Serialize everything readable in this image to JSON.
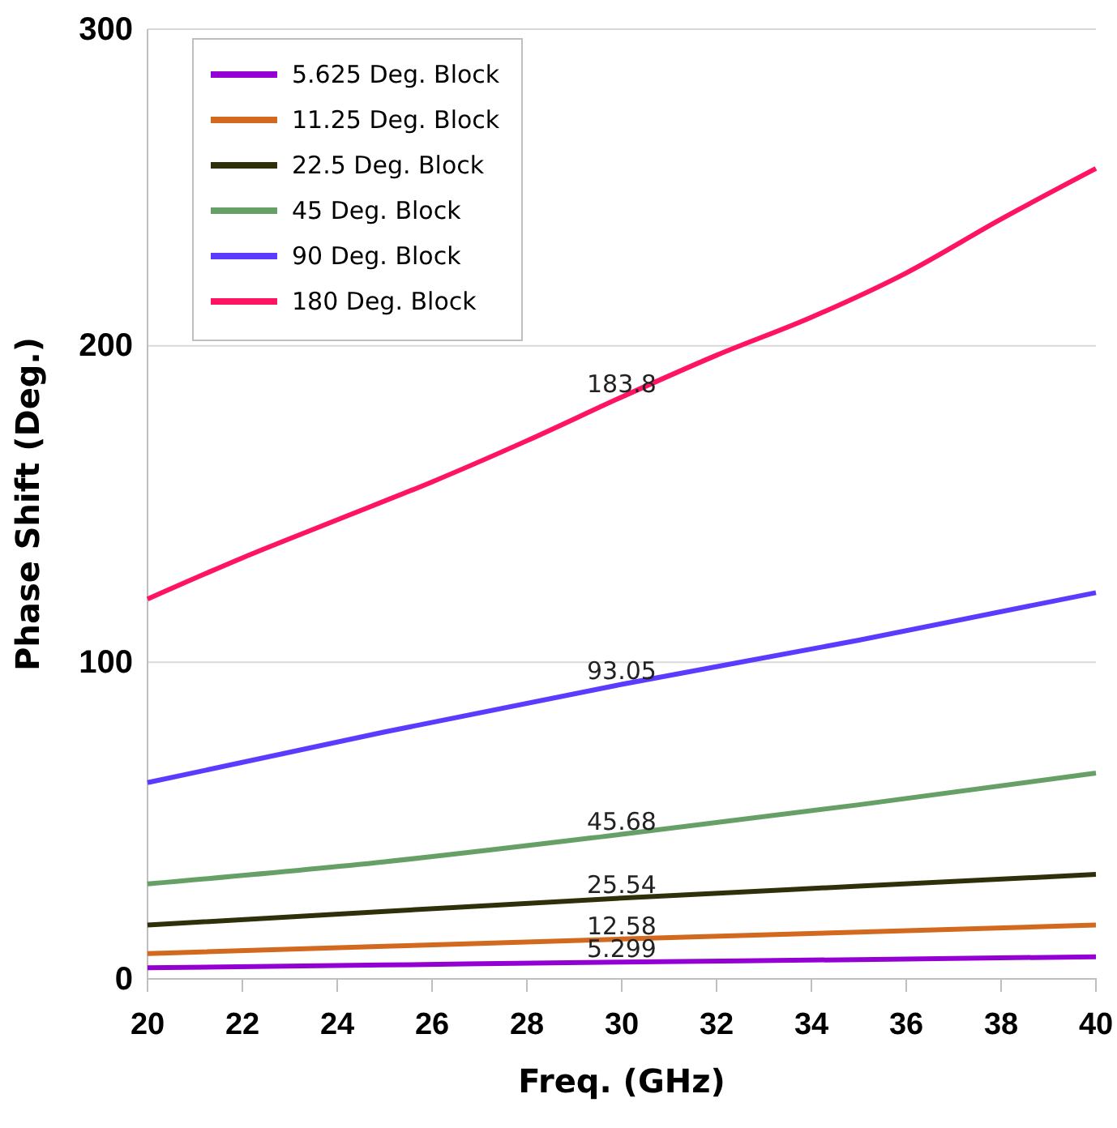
{
  "chart_data": {
    "type": "line",
    "xlabel": "Freq. (GHz)",
    "ylabel": "Phase Shift (Deg.)",
    "xlim": [
      20,
      40
    ],
    "xticks": [
      20,
      22,
      24,
      26,
      28,
      30,
      32,
      34,
      36,
      38,
      40
    ],
    "ylim": [
      0,
      300
    ],
    "yticks": [
      0,
      100,
      200,
      300
    ],
    "grid": "y",
    "legend": "top left",
    "line_style": "solid",
    "marker": "none",
    "series": [
      {
        "name": "5.625 Deg. Block",
        "color": "#9400d3",
        "x": [
          20,
          25,
          30,
          35,
          40
        ],
        "values": [
          3.5,
          4.4,
          5.299,
          6.1,
          7
        ],
        "value_labels": [
          null,
          null,
          "5.299",
          null,
          null
        ]
      },
      {
        "name": "11.25 Deg. Block",
        "color": "#d2691e",
        "x": [
          20,
          25,
          30,
          35,
          40
        ],
        "values": [
          8,
          10.3,
          12.58,
          14.8,
          17
        ],
        "value_labels": [
          null,
          null,
          "12.58",
          null,
          null
        ]
      },
      {
        "name": "22.5 Deg. Block",
        "color": "#2f2f0a",
        "x": [
          20,
          25,
          30,
          35,
          40
        ],
        "values": [
          17,
          21.3,
          25.54,
          29.3,
          33
        ],
        "value_labels": [
          null,
          null,
          "25.54",
          null,
          null
        ]
      },
      {
        "name": "45 Deg. Block",
        "color": "#66a066",
        "x": [
          20,
          25,
          30,
          35,
          40
        ],
        "values": [
          30,
          37,
          45.68,
          55,
          65
        ],
        "value_labels": [
          null,
          null,
          "45.68",
          null,
          null
        ]
      },
      {
        "name": "90 Deg. Block",
        "color": "#5b3cff",
        "x": [
          20,
          25,
          30,
          35,
          40
        ],
        "values": [
          62,
          78,
          93.05,
          107,
          122
        ],
        "value_labels": [
          null,
          null,
          "93.05",
          null,
          null
        ]
      },
      {
        "name": "180 Deg. Block",
        "color": "#ff1464",
        "x": [
          20,
          22,
          24,
          26,
          28,
          30,
          32,
          34,
          36,
          38,
          40
        ],
        "values": [
          120,
          133,
          145,
          157,
          170,
          183.8,
          197,
          209,
          223,
          240,
          256
        ],
        "value_labels": [
          null,
          null,
          null,
          null,
          null,
          "183.8",
          null,
          null,
          null,
          null,
          null
        ]
      }
    ]
  }
}
